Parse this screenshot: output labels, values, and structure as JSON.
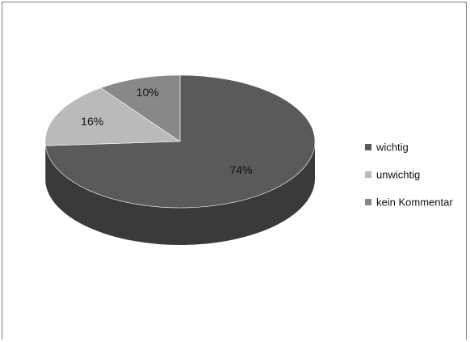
{
  "chart_data": {
    "type": "pie",
    "title": "",
    "categories": [
      "wichtig",
      "unwichtig",
      "kein Kommentar"
    ],
    "values": [
      74,
      16,
      10
    ],
    "labels": [
      "74%",
      "16%",
      "10%"
    ],
    "unit": "%",
    "colors": [
      "#5a5a5a",
      "#bababa",
      "#888888"
    ],
    "side_colors": [
      "#3a3a3a",
      "#8c8c8c",
      "#646464"
    ],
    "three_d": true,
    "legend": "right",
    "grid": false
  }
}
